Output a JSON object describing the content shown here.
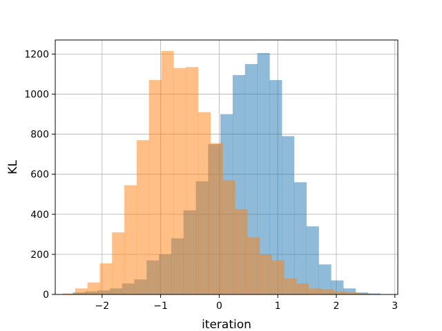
{
  "chart_data": {
    "type": "bar",
    "title": "",
    "xlabel": "iteration",
    "ylabel": "KL",
    "xlim": [
      -2.8,
      3.05
    ],
    "ylim": [
      0,
      1270
    ],
    "xticks": [
      -2,
      -1,
      0,
      1,
      2,
      3
    ],
    "xtick_labels": [
      "−2",
      "−1",
      "0",
      "1",
      "2",
      "3"
    ],
    "yticks": [
      0,
      200,
      400,
      600,
      800,
      1000,
      1200
    ],
    "ytick_labels": [
      "0",
      "200",
      "400",
      "600",
      "800",
      "1000",
      "1200"
    ],
    "grid": true,
    "legend": "none",
    "series": [
      {
        "color": "#1f77b4",
        "alpha": 0.5,
        "bin_edges": [
          -2.5,
          -2.29,
          -2.08,
          -1.87,
          -1.66,
          -1.45,
          -1.24,
          -1.03,
          -0.82,
          -0.61,
          -0.4,
          -0.19,
          0.02,
          0.23,
          0.44,
          0.65,
          0.86,
          1.07,
          1.28,
          1.49,
          1.7,
          1.91,
          2.12,
          2.33,
          2.54,
          2.75
        ],
        "values": [
          10,
          15,
          20,
          30,
          55,
          75,
          170,
          200,
          280,
          420,
          565,
          750,
          900,
          1095,
          1150,
          1205,
          1070,
          790,
          560,
          340,
          150,
          70,
          30,
          10,
          5
        ]
      },
      {
        "color": "#ff7f0e",
        "alpha": 0.5,
        "bin_edges": [
          -2.67,
          -2.46,
          -2.25,
          -2.04,
          -1.83,
          -1.62,
          -1.41,
          -1.2,
          -0.99,
          -0.78,
          -0.57,
          -0.36,
          -0.15,
          0.06,
          0.27,
          0.48,
          0.69,
          0.9,
          1.11,
          1.32,
          1.53,
          1.74,
          1.95,
          2.16,
          2.37,
          2.58
        ],
        "values": [
          5,
          30,
          60,
          155,
          310,
          545,
          770,
          1070,
          1215,
          1130,
          1135,
          910,
          755,
          570,
          425,
          285,
          200,
          170,
          80,
          55,
          30,
          25,
          15,
          10,
          5
        ]
      }
    ]
  }
}
